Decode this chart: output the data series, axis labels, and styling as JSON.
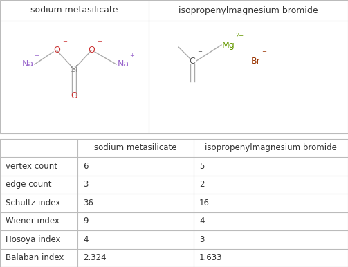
{
  "col_headers": [
    "",
    "sodium metasilicate",
    "isopropenylmagnesium bromide"
  ],
  "rows": [
    [
      "vertex count",
      "6",
      "5"
    ],
    [
      "edge count",
      "3",
      "2"
    ],
    [
      "Schultz index",
      "36",
      "16"
    ],
    [
      "Wiener index",
      "9",
      "4"
    ],
    [
      "Hosoya index",
      "4",
      "3"
    ],
    [
      "Balaban index",
      "2.324",
      "1.633"
    ]
  ],
  "background_color": "#ffffff",
  "border_color": "#bbbbbb",
  "text_color": "#333333",
  "na_color": "#9966cc",
  "o_color": "#cc3333",
  "si_color": "#888888",
  "mg_color": "#669900",
  "br_color": "#993300",
  "c_color": "#555555",
  "bond_color": "#aaaaaa",
  "mol1_name": "sodium metasilicate",
  "mol2_name": "isopropenylmagnesium bromide",
  "figure_width": 5.03,
  "figure_height": 3.86,
  "dpi": 100
}
